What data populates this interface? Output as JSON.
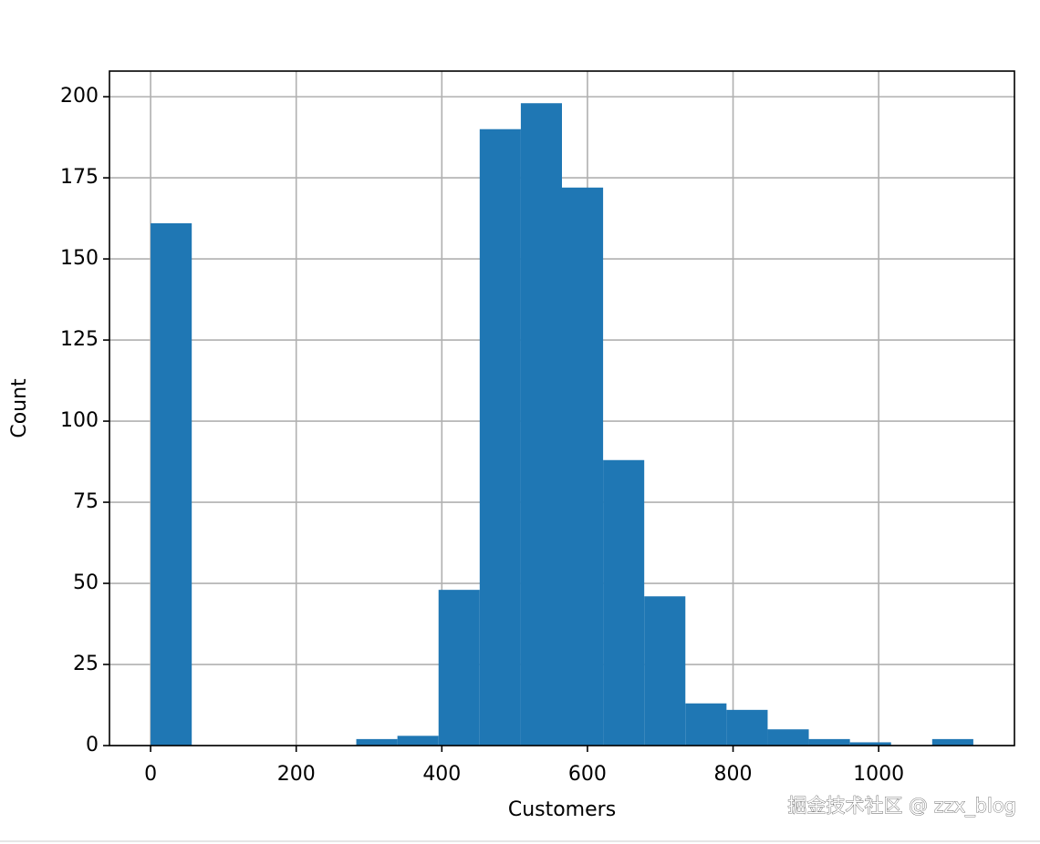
{
  "chart_data": {
    "type": "histogram",
    "x_label": "Customers",
    "y_label": "Count",
    "bins": [
      0,
      56.5,
      113,
      169.5,
      226,
      282.5,
      339,
      395.5,
      452,
      508.5,
      565,
      621.5,
      678,
      734.5,
      791,
      847.5,
      904,
      960.5,
      1017,
      1073.5,
      1130
    ],
    "values": [
      161,
      0,
      0,
      0,
      0,
      2,
      3,
      48,
      190,
      198,
      172,
      88,
      46,
      13,
      11,
      5,
      2,
      1,
      0,
      2
    ],
    "color": "#1f77b4",
    "xlim": [
      -56.5,
      1186.5
    ],
    "xticks": [
      0,
      200,
      400,
      600,
      800,
      1000
    ],
    "ylim": [
      0,
      207.9
    ],
    "yticks": [
      0,
      25,
      50,
      75,
      100,
      125,
      150,
      175,
      200
    ],
    "grid": true,
    "watermark": "掘金技术社区 @ zzx_blog"
  }
}
